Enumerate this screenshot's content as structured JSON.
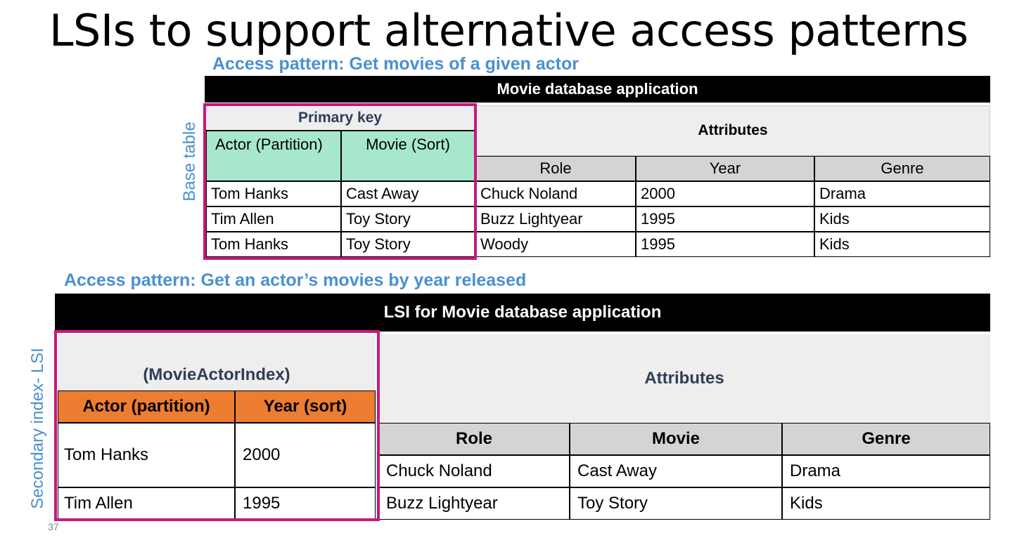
{
  "title": "LSIs to support alternative access patterns",
  "page_number": "37",
  "base": {
    "access_pattern": "Access pattern: Get movies of a given actor",
    "side_label": "Base table",
    "banner": "Movie database application",
    "primary_key": "Primary key",
    "attributes": "Attributes",
    "key_cols": [
      "Actor (Partition)",
      "Movie (Sort)"
    ],
    "attr_cols": [
      "Role",
      "Year",
      "Genre"
    ],
    "rows": [
      [
        "Tom Hanks",
        "Cast Away",
        "Chuck Noland",
        "2000",
        "Drama"
      ],
      [
        "Tim Allen",
        "Toy Story",
        "Buzz Lightyear",
        "1995",
        "Kids"
      ],
      [
        "Tom Hanks",
        "Toy Story",
        "Woody",
        "1995",
        "Kids"
      ]
    ]
  },
  "lsi": {
    "access_pattern": "Access pattern: Get an actor’s movies by year released",
    "side_label": "Secondary index- LSI",
    "banner": "LSI for Movie database application",
    "index_name": "(MovieActorIndex)",
    "attributes": "Attributes",
    "key_cols": [
      "Actor (partition)",
      "Year (sort)"
    ],
    "attr_cols": [
      "Role",
      "Movie",
      "Genre"
    ],
    "rows": [
      [
        "Tom Hanks",
        "2000",
        "Chuck Noland",
        "Cast Away",
        "Drama"
      ],
      [
        "Tim Allen",
        "1995",
        "Buzz Lightyear",
        "Toy Story",
        "Kids"
      ]
    ]
  },
  "colors": {
    "accent_blue": "#4a90d0",
    "highlight_pink": "#c8187a",
    "key_mint": "#a7e8cc",
    "key_orange": "#ed7d31"
  }
}
